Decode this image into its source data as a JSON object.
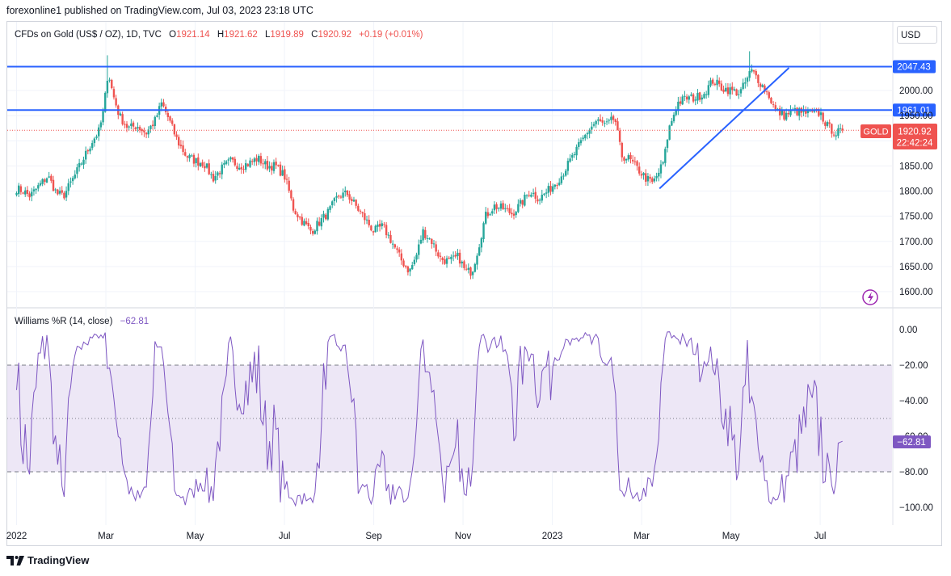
{
  "header": {
    "publisher": "forexonline1 published on TradingView.com, Jul 03, 2023 23:18 UTC"
  },
  "symbol": {
    "name": "CFDs on Gold (US$ / OZ), 1D, TVC",
    "open_label": "O",
    "open": "1921.14",
    "high_label": "H",
    "high": "1921.62",
    "low_label": "L",
    "low": "1919.89",
    "close_label": "C",
    "close": "1920.92",
    "change": "+0.19 (+0.01%)"
  },
  "currency": "USD",
  "price_tag": {
    "ticker": "GOLD",
    "price": "1920.92",
    "countdown": "22:42:24"
  },
  "indicator": {
    "name": "Williams %R (14, close)",
    "value": "−62.81",
    "badge": "−62.81"
  },
  "footer": {
    "brand": "TradingView"
  },
  "colors": {
    "up": "#26a69a",
    "down": "#ef5350",
    "hline": "#2962ff",
    "indicator": "#7e57c2",
    "band": "#ede7f6",
    "tag_red": "#ef5350"
  },
  "chart_data": [
    {
      "type": "candlestick",
      "title": "CFDs on Gold (US$ / OZ), 1D, TVC",
      "y_axis_ticks": [
        "2000.00",
        "1950.00",
        "1900.00",
        "1850.00",
        "1800.00",
        "1750.00",
        "1700.00",
        "1650.00",
        "1600.00"
      ],
      "ylim": [
        1590,
        2070
      ],
      "x_axis_ticks": [
        "2022",
        "Mar",
        "May",
        "Jul",
        "Sep",
        "Nov",
        "2023",
        "Mar",
        "May",
        "Jul"
      ],
      "x_tick_months": [
        0,
        2,
        4,
        6,
        8,
        10,
        12,
        14,
        16,
        18
      ],
      "xlim_months": [
        -0.1,
        19.5
      ],
      "anchor_closes": [
        [
          0.0,
          1805
        ],
        [
          0.15,
          1800
        ],
        [
          0.3,
          1790
        ],
        [
          0.5,
          1810
        ],
        [
          0.7,
          1830
        ],
        [
          0.9,
          1795
        ],
        [
          1.05,
          1790
        ],
        [
          1.3,
          1830
        ],
        [
          1.5,
          1865
        ],
        [
          1.7,
          1900
        ],
        [
          1.85,
          1920
        ],
        [
          1.95,
          1960
        ],
        [
          2.05,
          2040
        ],
        [
          2.15,
          1995
        ],
        [
          2.3,
          1950
        ],
        [
          2.5,
          1925
        ],
        [
          2.7,
          1930
        ],
        [
          2.9,
          1915
        ],
        [
          3.1,
          1940
        ],
        [
          3.25,
          1975
        ],
        [
          3.4,
          1945
        ],
        [
          3.6,
          1900
        ],
        [
          3.8,
          1870
        ],
        [
          4.0,
          1860
        ],
        [
          4.2,
          1855
        ],
        [
          4.4,
          1825
        ],
        [
          4.6,
          1845
        ],
        [
          4.8,
          1860
        ],
        [
          5.0,
          1850
        ],
        [
          5.2,
          1855
        ],
        [
          5.4,
          1865
        ],
        [
          5.6,
          1850
        ],
        [
          5.8,
          1850
        ],
        [
          6.0,
          1830
        ],
        [
          6.1,
          1800
        ],
        [
          6.2,
          1765
        ],
        [
          6.4,
          1740
        ],
        [
          6.6,
          1720
        ],
        [
          6.8,
          1740
        ],
        [
          7.0,
          1760
        ],
        [
          7.2,
          1790
        ],
        [
          7.4,
          1795
        ],
        [
          7.6,
          1770
        ],
        [
          7.8,
          1745
        ],
        [
          8.0,
          1720
        ],
        [
          8.2,
          1730
        ],
        [
          8.4,
          1700
        ],
        [
          8.6,
          1665
        ],
        [
          8.8,
          1640
        ],
        [
          8.95,
          1670
        ],
        [
          9.1,
          1720
        ],
        [
          9.3,
          1700
        ],
        [
          9.5,
          1665
        ],
        [
          9.7,
          1660
        ],
        [
          9.9,
          1670
        ],
        [
          10.05,
          1640
        ],
        [
          10.2,
          1640
        ],
        [
          10.35,
          1690
        ],
        [
          10.5,
          1750
        ],
        [
          10.7,
          1770
        ],
        [
          10.9,
          1765
        ],
        [
          11.1,
          1755
        ],
        [
          11.3,
          1775
        ],
        [
          11.5,
          1800
        ],
        [
          11.7,
          1785
        ],
        [
          11.9,
          1800
        ],
        [
          12.0,
          1810
        ],
        [
          12.2,
          1830
        ],
        [
          12.4,
          1860
        ],
        [
          12.6,
          1890
        ],
        [
          12.8,
          1920
        ],
        [
          13.0,
          1940
        ],
        [
          13.2,
          1930
        ],
        [
          13.4,
          1945
        ],
        [
          13.55,
          1870
        ],
        [
          13.7,
          1865
        ],
        [
          13.9,
          1845
        ],
        [
          14.1,
          1825
        ],
        [
          14.25,
          1815
        ],
        [
          14.4,
          1840
        ],
        [
          14.5,
          1860
        ],
        [
          14.6,
          1920
        ],
        [
          14.8,
          1975
        ],
        [
          15.0,
          1985
        ],
        [
          15.2,
          1985
        ],
        [
          15.4,
          1995
        ],
        [
          15.6,
          2020
        ],
        [
          15.8,
          2005
        ],
        [
          16.0,
          2000
        ],
        [
          16.2,
          1995
        ],
        [
          16.35,
          2020
        ],
        [
          16.45,
          2040
        ],
        [
          16.55,
          2030
        ],
        [
          16.7,
          2010
        ],
        [
          16.85,
          1990
        ],
        [
          17.0,
          1960
        ],
        [
          17.2,
          1950
        ],
        [
          17.4,
          1960
        ],
        [
          17.6,
          1955
        ],
        [
          17.8,
          1955
        ],
        [
          18.0,
          1955
        ],
        [
          18.15,
          1930
        ],
        [
          18.35,
          1915
        ],
        [
          18.5,
          1920
        ]
      ],
      "wick_extremes": [
        {
          "month": 2.05,
          "high": 2070
        },
        {
          "month": 16.42,
          "high": 2078
        }
      ],
      "horizontal_levels": [
        {
          "label": "2047.43",
          "value": 2047.43
        },
        {
          "label": "1961.01",
          "value": 1961.01
        }
      ],
      "current_price_line": 1920.92,
      "trendline": [
        [
          14.4,
          1805
        ],
        [
          17.3,
          2045
        ]
      ]
    },
    {
      "type": "line",
      "title": "Williams %R (14, close)",
      "y_axis_ticks": [
        "0.00",
        "−20.00",
        "−40.00",
        "−60.00",
        "−80.00",
        "−100.00"
      ],
      "ylim": [
        -100,
        0
      ],
      "levels": [
        -20,
        -50,
        -80
      ],
      "band": [
        -80,
        -20
      ],
      "last_value": -62.81
    }
  ]
}
